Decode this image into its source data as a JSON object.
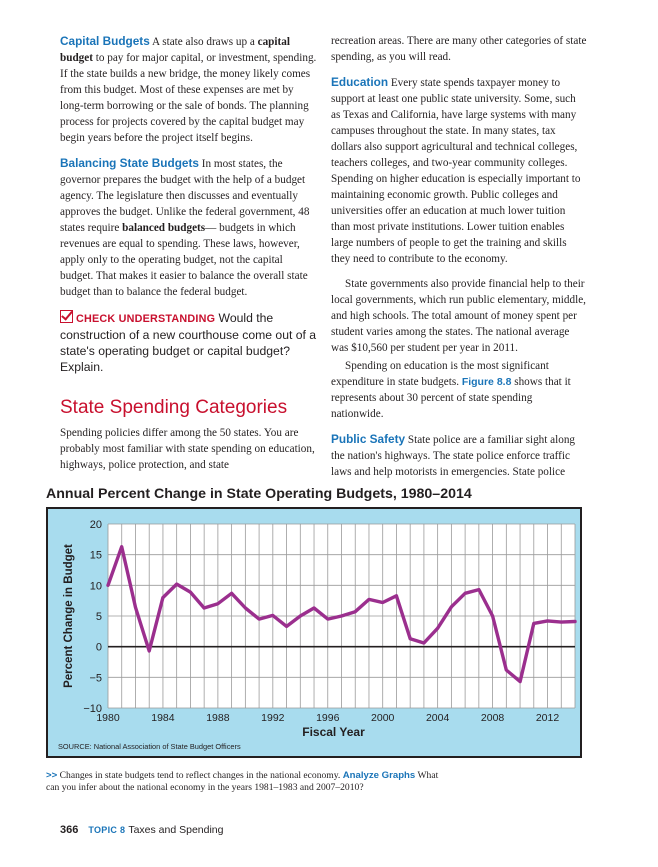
{
  "left_column": {
    "capital_budgets": {
      "heading": "Capital Budgets",
      "t1": " A state also draws up a ",
      "b1": "capital budget",
      "t2": " to pay for major capital, or investment, spending. If the state builds a new bridge, the money likely comes from this budget. Most of these expenses are met by long-term borrowing or the sale of bonds. The planning process for projects covered by the capital budget may begin years before the project itself begins."
    },
    "balancing": {
      "heading": "Balancing State Budgets",
      "t1": " In most states, the governor prepares the budget with the help of a budget agency. The legislature then discusses and eventually approves the budget. Unlike the federal government, 48 states require ",
      "b1": "balanced budgets",
      "t2": "— budgets in which revenues are equal to spending. These laws, however, apply only to the operating budget, not the capital budget. That makes it easier to balance the overall state budget than to balance the federal budget."
    },
    "check": {
      "label": "CHECK UNDERSTANDING",
      "text": " Would the construction of a new courthouse come out of a state's operating budget or capital budget? Explain."
    },
    "section_title": "State Spending Categories",
    "section_intro": "Spending policies differ among the 50 states. You are probably most familiar with state spending on education, highways, police protection, and state"
  },
  "right_column": {
    "continuation": "recreation areas. There are many other categories of state spending, as you will read.",
    "education": {
      "heading": "Education",
      "text": " Every state spends taxpayer money to support at least one public state university. Some, such as Texas and California, have large systems with many campuses throughout the state. In many states, tax dollars also support agricultural and technical colleges, teachers colleges, and two-year community colleges. Spending on higher education is especially important to maintaining economic growth. Public colleges and universities offer an education at much lower tuition than most private institutions. Lower tuition enables large numbers of people to get the training and skills they need to contribute to the economy."
    },
    "para2": "State governments also provide financial help to their local governments, which run public elementary, middle, and high schools. The total amount of money spent per student varies among the states. The national average was $10,560 per student per year in 2011.",
    "para3": {
      "t1": "Spending on education is the most significant expenditure in state budgets. ",
      "fig": "Figure 8.8",
      "t2": " shows that it represents about 30 percent of state spending nationwide."
    },
    "public_safety": {
      "heading": "Public Safety",
      "text": " State police are a familiar sight along the nation's highways. The state police enforce traffic laws and help motorists in emergencies. State police"
    }
  },
  "figure": {
    "title": "Annual Percent Change in State Operating Budgets, 1980–2014",
    "source": "SOURCE: National Association of State Budget Officers",
    "caption": {
      "arrows": ">>",
      "t1": " Changes in state budgets tend to reflect changes in the national economy. ",
      "analyze": "Analyze Graphs",
      "t2": "  What can you infer about the national economy in the years 1981–1983 and 2007–2010?"
    }
  },
  "chart_data": {
    "type": "line",
    "title": "Annual Percent Change in State Operating Budgets, 1980–2014",
    "xlabel": "Fiscal Year",
    "ylabel": "Percent Change in Budget",
    "xlim": [
      1980,
      2014
    ],
    "ylim": [
      -10,
      20
    ],
    "x_ticks": [
      1980,
      1984,
      1988,
      1992,
      1996,
      2000,
      2004,
      2008,
      2012
    ],
    "y_ticks": [
      20,
      15,
      10,
      5,
      0,
      -5,
      -10
    ],
    "grid": true,
    "line_color": "#9b2f8e",
    "background_color": "#a8dcee",
    "series": [
      {
        "x": [
          1980,
          1981,
          1982,
          1983,
          1984,
          1985,
          1986,
          1987,
          1988,
          1989,
          1990,
          1991,
          1992,
          1993,
          1994,
          1995,
          1996,
          1997,
          1998,
          1999,
          2000,
          2001,
          2002,
          2003,
          2004,
          2005,
          2006,
          2007,
          2008,
          2009,
          2010,
          2011,
          2012,
          2013,
          2014
        ],
        "y": [
          10.0,
          16.3,
          6.4,
          -0.7,
          8.0,
          10.2,
          8.9,
          6.3,
          7.0,
          8.7,
          6.3,
          4.5,
          5.1,
          3.3,
          5.0,
          6.3,
          4.5,
          5.0,
          5.7,
          7.7,
          7.2,
          8.3,
          1.3,
          0.6,
          3.0,
          6.5,
          8.7,
          9.3,
          5.0,
          -3.8,
          -5.7,
          3.8,
          4.2,
          4.0,
          4.1
        ]
      }
    ]
  },
  "footer": {
    "page_number": "366",
    "topic_label": "TOPIC 8",
    "topic_title": "Taxes and Spending"
  }
}
